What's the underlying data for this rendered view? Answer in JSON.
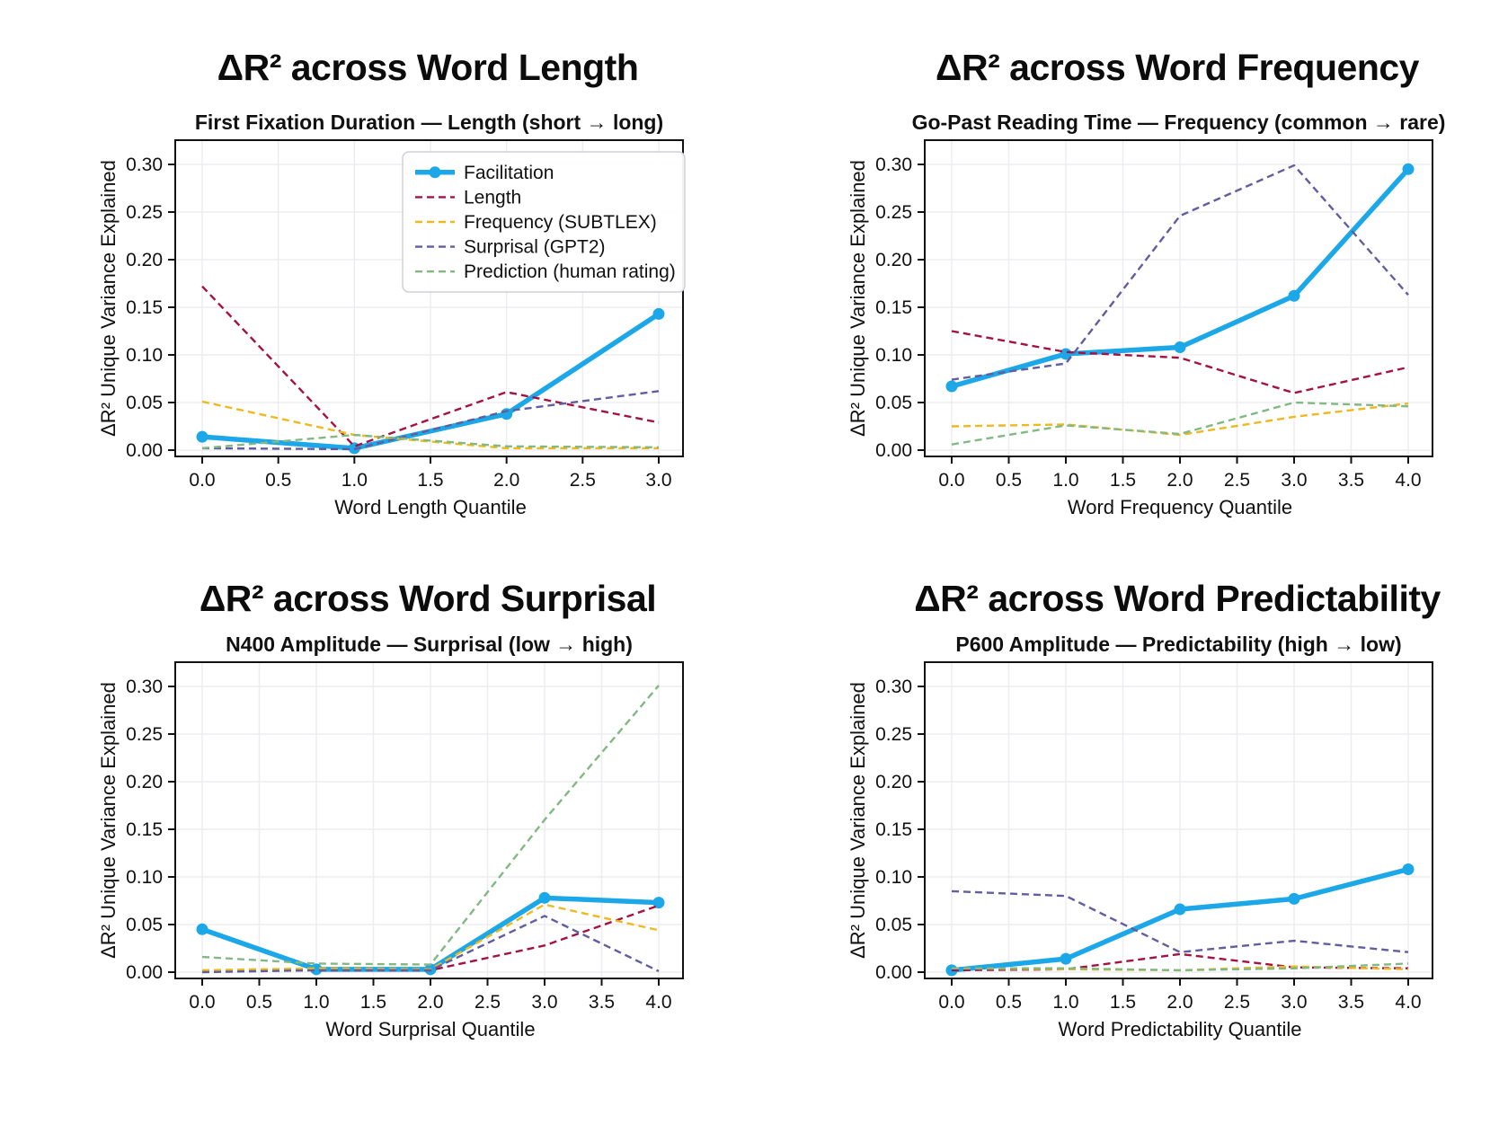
{
  "page": {
    "background": "#ffffff",
    "frame_color": "#111111",
    "grid_color": "#ededf1",
    "text_color": "#111111",
    "legend_border_color": "#cfcfd6",
    "legend_background": "#ffffff"
  },
  "chart_data": [
    {
      "type": "line",
      "title": "ΔR² across Word Length",
      "subtitle": "First Fixation Duration — Length (short → long)",
      "xlabel": "Word Length Quantile",
      "ylabel": "ΔR² Unique Variance Explained",
      "x": [
        0,
        1,
        2,
        3
      ],
      "xticks": [
        0.0,
        0.5,
        1.0,
        1.5,
        2.0,
        2.5,
        3.0
      ],
      "yticks": [
        0.0,
        0.05,
        0.1,
        0.15,
        0.2,
        0.25,
        0.3
      ],
      "ylim": [
        0.0,
        0.3
      ],
      "xtick_decimals": 1,
      "ytick_decimals": 2,
      "grid": true,
      "legend": {
        "show": true,
        "position": "upper-right"
      },
      "series": [
        {
          "name": "Facilitation",
          "color": "#1ba7e8",
          "style": "solid",
          "marker": "circle",
          "values": [
            0.014,
            0.002,
            0.038,
            0.143
          ]
        },
        {
          "name": "Length",
          "color": "#a31240",
          "style": "dashed",
          "values": [
            0.172,
            0.004,
            0.061,
            0.029
          ]
        },
        {
          "name": "Frequency (SUBTLEX)",
          "color": "#edb91e",
          "style": "dashed",
          "values": [
            0.051,
            0.016,
            0.002,
            0.002
          ]
        },
        {
          "name": "Surprisal (GPT2)",
          "color": "#625d9e",
          "style": "dashed",
          "values": [
            0.002,
            0.001,
            0.041,
            0.062
          ]
        },
        {
          "name": "Prediction (human rating)",
          "color": "#82b982",
          "style": "dashed",
          "values": [
            0.002,
            0.016,
            0.004,
            0.003
          ]
        }
      ]
    },
    {
      "type": "line",
      "title": "ΔR² across Word Frequency",
      "subtitle": "Go-Past Reading Time — Frequency (common → rare)",
      "xlabel": "Word Frequency Quantile",
      "ylabel": "ΔR² Unique Variance Explained",
      "x": [
        0,
        1,
        2,
        3,
        4
      ],
      "xticks": [
        0.0,
        0.5,
        1.0,
        1.5,
        2.0,
        2.5,
        3.0,
        3.5,
        4.0
      ],
      "yticks": [
        0.0,
        0.05,
        0.1,
        0.15,
        0.2,
        0.25,
        0.3
      ],
      "ylim": [
        0.0,
        0.3
      ],
      "xtick_decimals": 1,
      "ytick_decimals": 2,
      "grid": true,
      "legend": {
        "show": false
      },
      "series": [
        {
          "name": "Facilitation",
          "color": "#1ba7e8",
          "style": "solid",
          "marker": "circle",
          "values": [
            0.067,
            0.101,
            0.108,
            0.162,
            0.295
          ]
        },
        {
          "name": "Length",
          "color": "#a31240",
          "style": "dashed",
          "values": [
            0.125,
            0.103,
            0.097,
            0.06,
            0.087
          ]
        },
        {
          "name": "Frequency (SUBTLEX)",
          "color": "#edb91e",
          "style": "dashed",
          "values": [
            0.025,
            0.027,
            0.016,
            0.035,
            0.049
          ]
        },
        {
          "name": "Surprisal (GPT2)",
          "color": "#625d9e",
          "style": "dashed",
          "values": [
            0.074,
            0.091,
            0.246,
            0.299,
            0.163
          ]
        },
        {
          "name": "Prediction (human rating)",
          "color": "#82b982",
          "style": "dashed",
          "values": [
            0.006,
            0.026,
            0.017,
            0.05,
            0.046
          ]
        }
      ]
    },
    {
      "type": "line",
      "title": "ΔR² across Word Surprisal",
      "subtitle": "N400 Amplitude — Surprisal (low → high)",
      "xlabel": "Word Surprisal Quantile",
      "ylabel": "ΔR² Unique Variance Explained",
      "x": [
        0,
        1,
        2,
        3,
        4
      ],
      "xticks": [
        0.0,
        0.5,
        1.0,
        1.5,
        2.0,
        2.5,
        3.0,
        3.5,
        4.0
      ],
      "yticks": [
        0.0,
        0.05,
        0.1,
        0.15,
        0.2,
        0.25,
        0.3
      ],
      "ylim": [
        0.0,
        0.3
      ],
      "xtick_decimals": 1,
      "ytick_decimals": 2,
      "grid": true,
      "legend": {
        "show": false
      },
      "series": [
        {
          "name": "Facilitation",
          "color": "#1ba7e8",
          "style": "solid",
          "marker": "circle",
          "values": [
            0.045,
            0.003,
            0.003,
            0.078,
            0.073
          ]
        },
        {
          "name": "Length",
          "color": "#a31240",
          "style": "dashed",
          "values": [
            0.001,
            0.002,
            0.002,
            0.028,
            0.07
          ]
        },
        {
          "name": "Frequency (SUBTLEX)",
          "color": "#edb91e",
          "style": "dashed",
          "values": [
            0.002,
            0.004,
            0.003,
            0.071,
            0.044
          ]
        },
        {
          "name": "Surprisal (GPT2)",
          "color": "#625d9e",
          "style": "dashed",
          "values": [
            0.0,
            0.002,
            0.002,
            0.059,
            0.001
          ]
        },
        {
          "name": "Prediction (human rating)",
          "color": "#82b982",
          "style": "dashed",
          "values": [
            0.016,
            0.009,
            0.008,
            0.16,
            0.301
          ]
        }
      ]
    },
    {
      "type": "line",
      "title": "ΔR² across Word Predictability",
      "subtitle": "P600 Amplitude — Predictability (high → low)",
      "xlabel": "Word Predictability Quantile",
      "ylabel": "ΔR² Unique Variance Explained",
      "x": [
        0,
        1,
        2,
        3,
        4
      ],
      "xticks": [
        0.0,
        0.5,
        1.0,
        1.5,
        2.0,
        2.5,
        3.0,
        3.5,
        4.0
      ],
      "yticks": [
        0.0,
        0.05,
        0.1,
        0.15,
        0.2,
        0.25,
        0.3
      ],
      "ylim": [
        0.0,
        0.3
      ],
      "xtick_decimals": 1,
      "ytick_decimals": 2,
      "grid": true,
      "legend": {
        "show": false
      },
      "series": [
        {
          "name": "Facilitation",
          "color": "#1ba7e8",
          "style": "solid",
          "marker": "circle",
          "values": [
            0.002,
            0.014,
            0.066,
            0.077,
            0.108
          ]
        },
        {
          "name": "Length",
          "color": "#a31240",
          "style": "dashed",
          "values": [
            0.002,
            0.003,
            0.019,
            0.005,
            0.004
          ]
        },
        {
          "name": "Frequency (SUBTLEX)",
          "color": "#edb91e",
          "style": "dashed",
          "values": [
            0.004,
            0.003,
            0.002,
            0.006,
            0.003
          ]
        },
        {
          "name": "Surprisal (GPT2)",
          "color": "#625d9e",
          "style": "dashed",
          "values": [
            0.085,
            0.08,
            0.021,
            0.033,
            0.021
          ]
        },
        {
          "name": "Prediction (human rating)",
          "color": "#82b982",
          "style": "dashed",
          "values": [
            0.004,
            0.004,
            0.002,
            0.004,
            0.009
          ]
        }
      ]
    }
  ]
}
